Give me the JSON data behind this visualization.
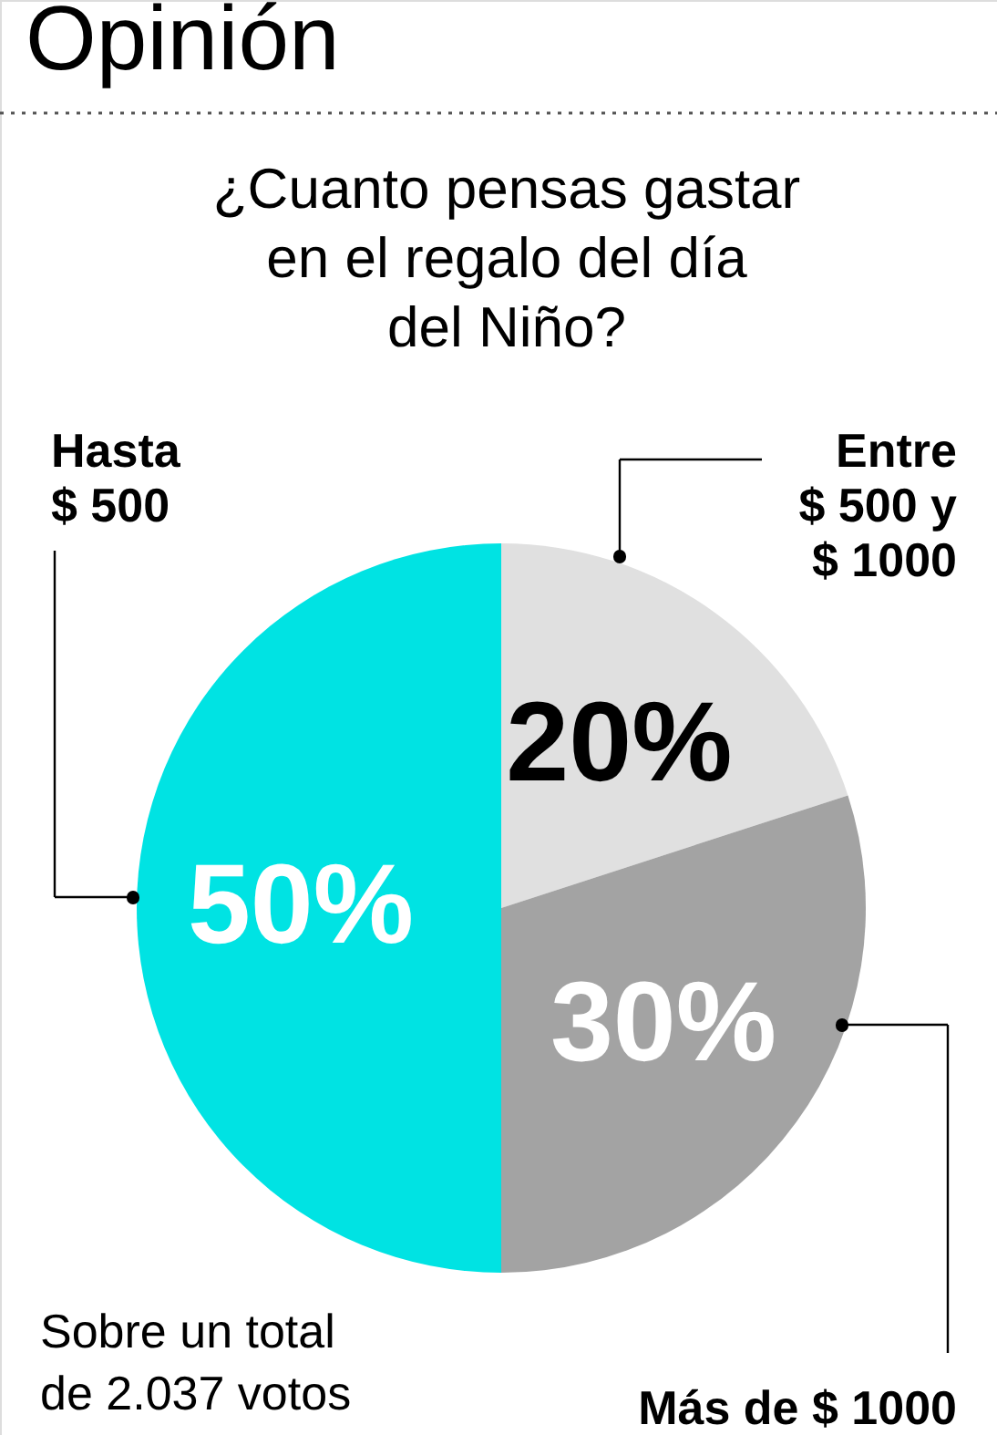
{
  "chart_data": {
    "type": "pie",
    "title": "Opinión",
    "subtitle": "¿Cuanto pensas gastar\nen el regalo del día\ndel Niño?",
    "categories": [
      "Entre\n$ 500 y\n$ 1000",
      "Más de $ 1000",
      "Hasta\n$ 500"
    ],
    "values": [
      20,
      30,
      50
    ],
    "value_labels": [
      "20%",
      "30%",
      "50%"
    ],
    "colors": [
      "#e0e0e0",
      "#a3a3a3",
      "#00e3e3"
    ],
    "annotations": [
      "Sobre un total\nde 2.037 votos"
    ]
  }
}
